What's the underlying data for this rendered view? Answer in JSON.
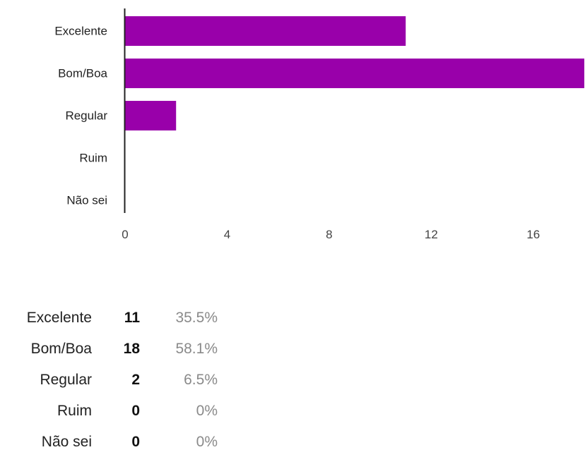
{
  "chart_data": {
    "type": "bar",
    "orientation": "horizontal",
    "categories": [
      "Excelente",
      "Bom/Boa",
      "Regular",
      "Ruim",
      "Não sei"
    ],
    "values": [
      11,
      18,
      2,
      0,
      0
    ],
    "xlim": [
      0,
      18
    ],
    "xticks": [
      "0",
      "4",
      "8",
      "12",
      "16"
    ],
    "color": "#9900aa",
    "grid": false,
    "legend": "none"
  },
  "summary": {
    "rows": [
      {
        "label": "Excelente",
        "count": "11",
        "percent": "35.5%"
      },
      {
        "label": "Bom/Boa",
        "count": "18",
        "percent": "58.1%"
      },
      {
        "label": "Regular",
        "count": "2",
        "percent": "6.5%"
      },
      {
        "label": "Ruim",
        "count": "0",
        "percent": "0%"
      },
      {
        "label": "Não sei",
        "count": "0",
        "percent": "0%"
      }
    ]
  }
}
